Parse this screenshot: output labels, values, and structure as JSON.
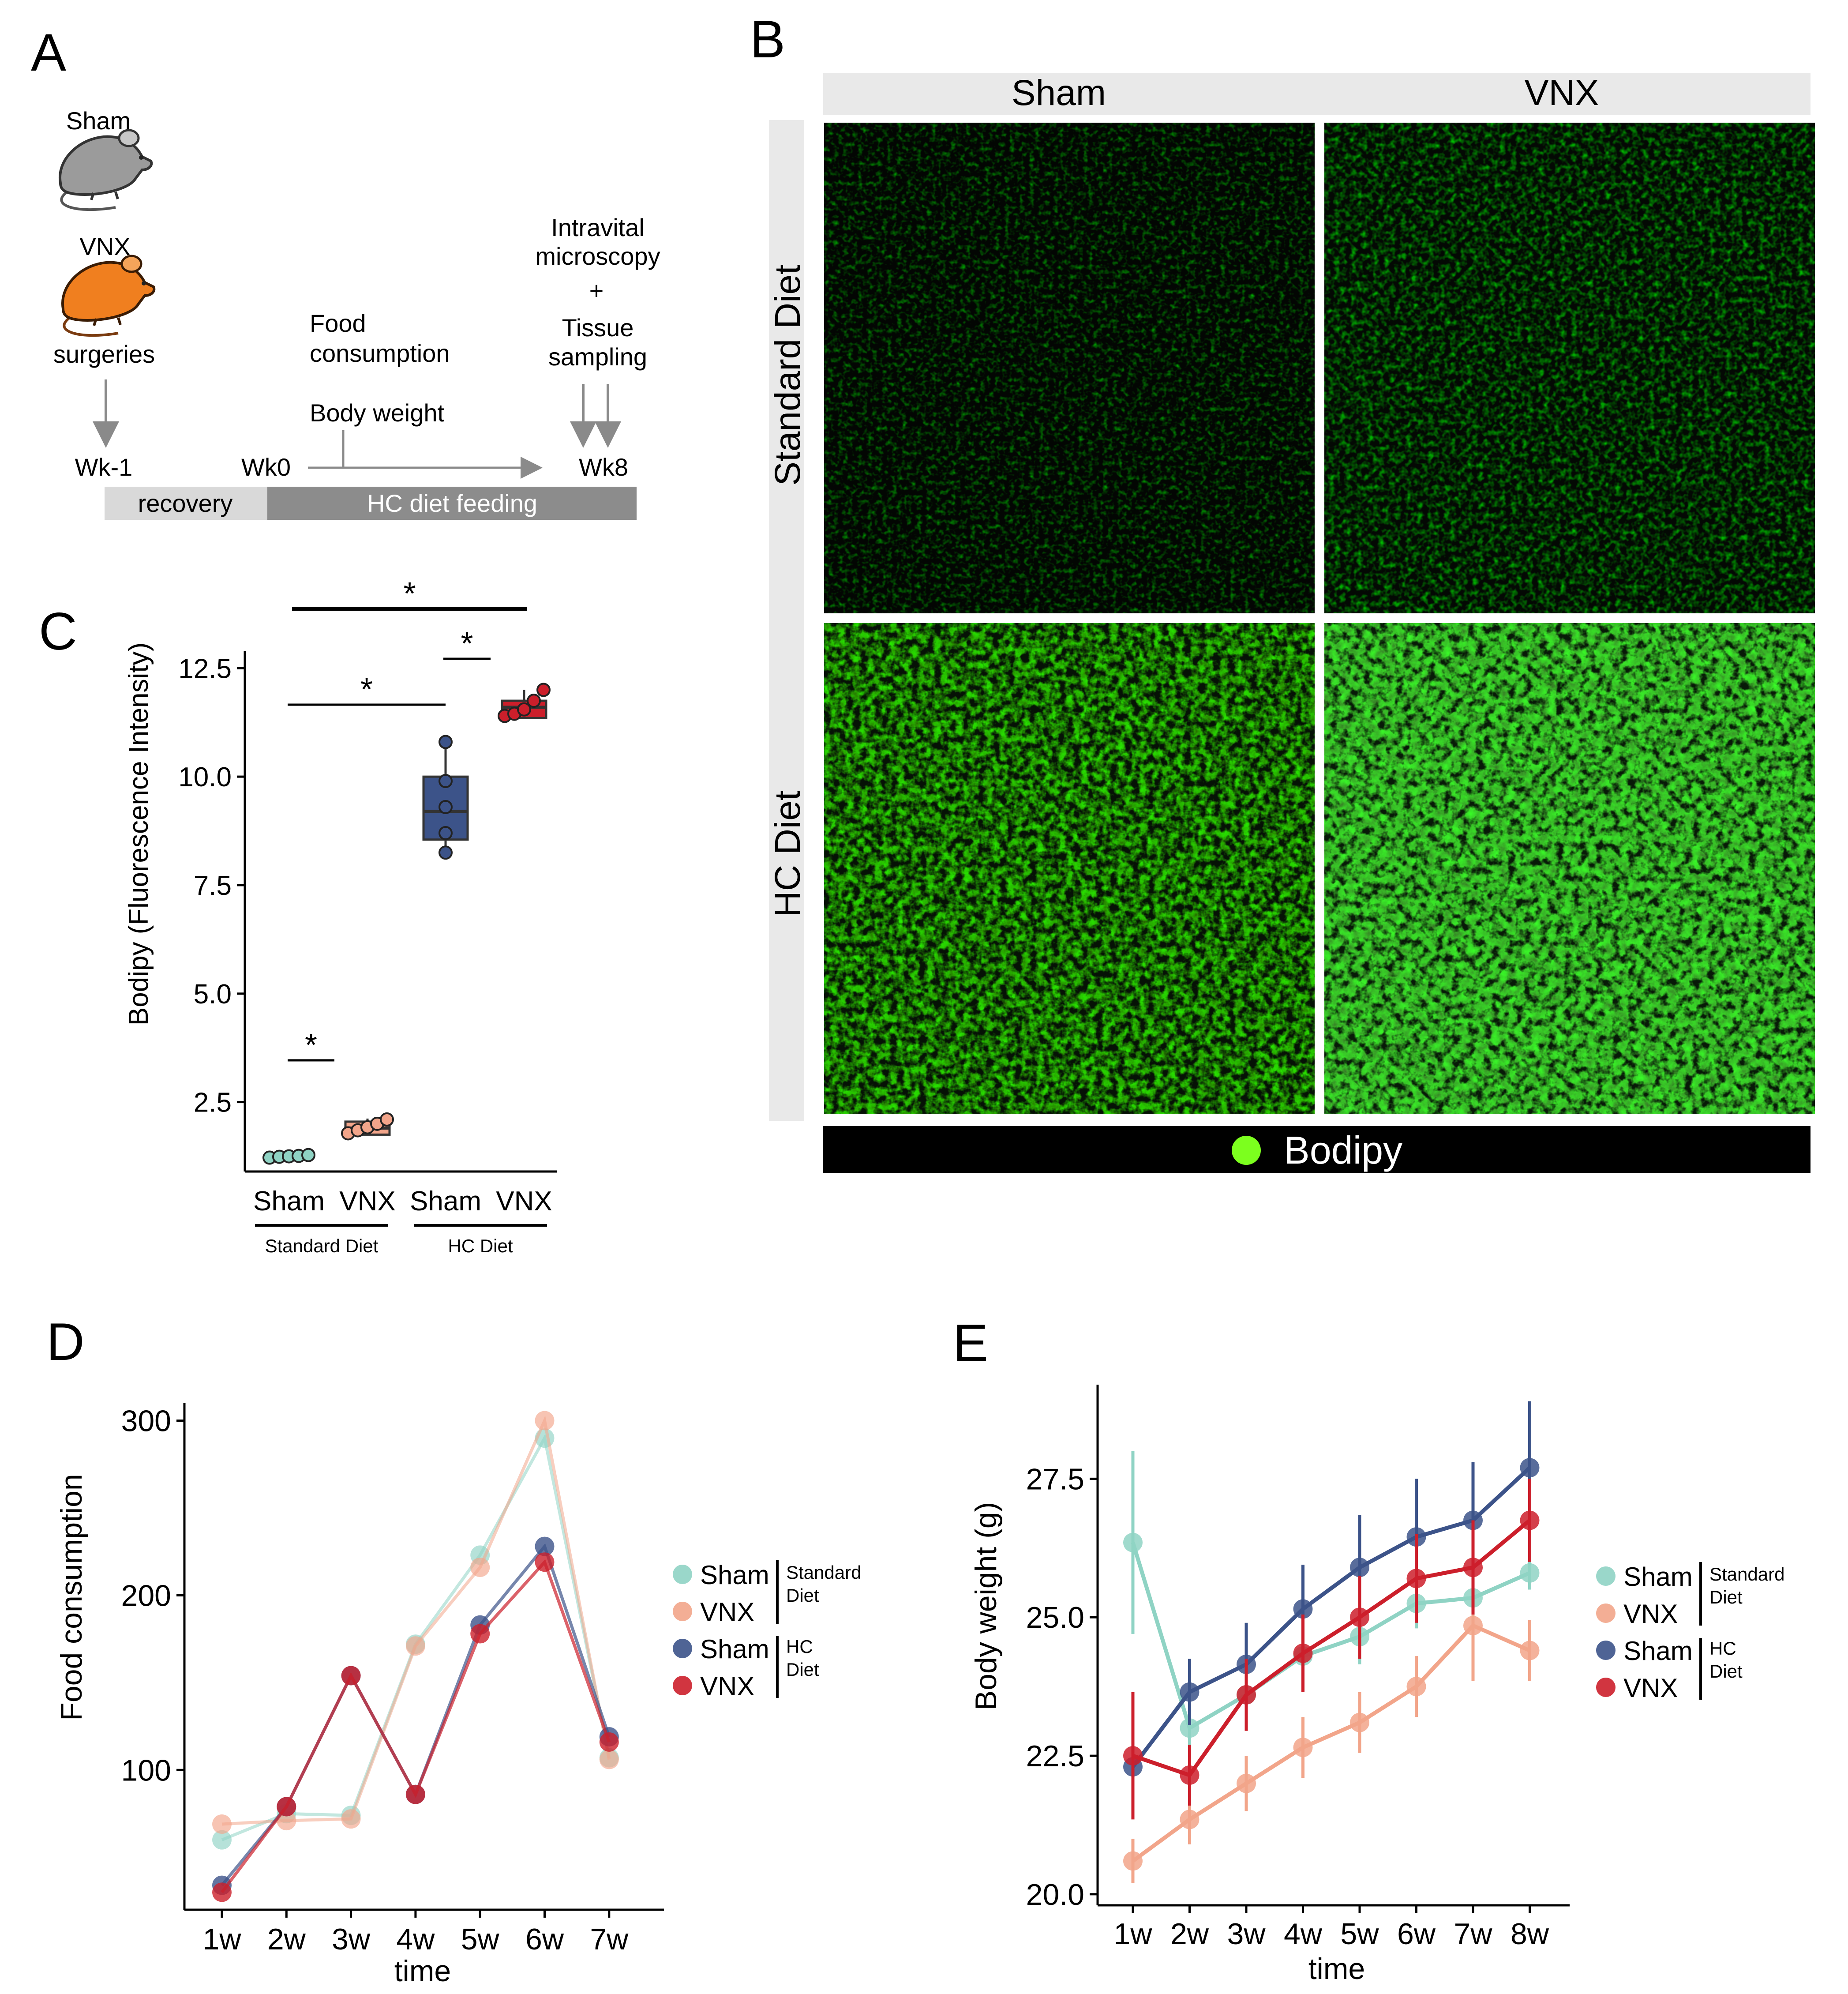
{
  "panel_labels": {
    "a": "A",
    "b": "B",
    "c": "C",
    "d": "D",
    "e": "E"
  },
  "colors": {
    "sham_std": "#8fd3c4",
    "vnx_std": "#f2a58a",
    "sham_hc": "#3c5389",
    "vnx_hc": "#cc1f2b",
    "bodipy_green": "#2bbf1e",
    "bodipy_dot": "#7cff1e",
    "strip_bg": "#e9e9e9"
  },
  "panelA": {
    "sham_label": "Sham",
    "vnx_label": "VNX",
    "surgeries": "surgeries",
    "food_line1": "Food",
    "food_line2": "consumption",
    "body_weight": "Body weight",
    "intravital_line1": "Intravital",
    "intravital_line2": "microscopy",
    "plus": "+",
    "tissue_line1": "Tissue",
    "tissue_line2": "sampling",
    "wk_minus1": "Wk-1",
    "wk0": "Wk0",
    "wk8": "Wk8",
    "recovery": "recovery",
    "hc_feeding": "HC diet feeding",
    "mouse_sham_icon": "gray-mouse-icon",
    "mouse_vnx_icon": "orange-mouse-icon"
  },
  "panelB": {
    "col_sham": "Sham",
    "col_vnx": "VNX",
    "row_standard": "Standard Diet",
    "row_hc": "HC Diet",
    "legend": "Bodipy",
    "images": [
      {
        "row": "Standard Diet",
        "col": "Sham",
        "intensity": 0.12
      },
      {
        "row": "Standard Diet",
        "col": "VNX",
        "intensity": 0.22
      },
      {
        "row": "HC Diet",
        "col": "Sham",
        "intensity": 0.7
      },
      {
        "row": "HC Diet",
        "col": "VNX",
        "intensity": 0.92
      }
    ]
  },
  "panelC": {
    "ylabel": "Bodipy (Fluorescence Intensity)",
    "group_standard": "Standard Diet",
    "group_hc": "HC Diet",
    "star": "*"
  },
  "panelD": {
    "ylabel": "Food consumption",
    "xlabel": "time",
    "legend_standard_line1": "Standard",
    "legend_standard_line2": "Diet",
    "legend_hc_line1": "HC",
    "legend_hc_line2": "Diet"
  },
  "panelE": {
    "ylabel": "Body weight (g)",
    "xlabel": "time",
    "legend_standard_line1": "Standard",
    "legend_standard_line2": "Diet",
    "legend_hc_line1": "HC",
    "legend_hc_line2": "Diet"
  },
  "chart_data": [
    {
      "id": "C",
      "type": "box",
      "categories": [
        "Sham",
        "VNX",
        "Sham",
        "VNX"
      ],
      "groups": [
        "Standard Diet",
        "Standard Diet",
        "HC Diet",
        "HC Diet"
      ],
      "ylabel": "Bodipy (Fluorescence Intensity)",
      "ylim": [
        0.9,
        12.9
      ],
      "yticks": [
        2.5,
        5.0,
        7.5,
        10.0,
        12.5
      ],
      "boxes": [
        {
          "name": "Sham",
          "group": "Standard Diet",
          "q1": 1.22,
          "median": 1.25,
          "q3": 1.28,
          "low": 1.22,
          "high": 1.28,
          "points": [
            1.22,
            1.24,
            1.25,
            1.26,
            1.28
          ]
        },
        {
          "name": "VNX",
          "group": "Standard Diet",
          "q1": 1.75,
          "median": 1.9,
          "q3": 2.05,
          "low": 1.75,
          "high": 2.12,
          "points": [
            1.78,
            1.85,
            1.92,
            2.0,
            2.1
          ]
        },
        {
          "name": "Sham",
          "group": "HC Diet",
          "q1": 8.55,
          "median": 9.2,
          "q3": 10.0,
          "low": 8.2,
          "high": 10.8,
          "points": [
            8.25,
            8.7,
            9.3,
            9.9,
            10.8
          ]
        },
        {
          "name": "VNX",
          "group": "HC Diet",
          "q1": 11.35,
          "median": 11.6,
          "q3": 11.75,
          "low": 11.35,
          "high": 12.0,
          "points": [
            11.4,
            11.45,
            11.55,
            11.75,
            12.0
          ]
        }
      ],
      "significance": [
        {
          "from": 0,
          "to": 1,
          "label": "*"
        },
        {
          "from": 0,
          "to": 2,
          "label": "*"
        },
        {
          "from": 2,
          "to": 3,
          "label": "*"
        },
        {
          "from": 0,
          "to": 3,
          "label": "*"
        }
      ]
    },
    {
      "id": "D",
      "type": "line",
      "x": [
        "1w",
        "2w",
        "3w",
        "4w",
        "5w",
        "6w",
        "7w"
      ],
      "ylabel": "Food consumption",
      "xlabel": "time",
      "ylim": [
        20,
        310
      ],
      "yticks": [
        100,
        200,
        300
      ],
      "series": [
        {
          "name": "Sham",
          "group": "Standard Diet",
          "color": "#8fd3c4",
          "values": [
            60,
            75,
            74,
            172,
            223,
            290,
            107
          ]
        },
        {
          "name": "VNX",
          "group": "Standard Diet",
          "color": "#f2a58a",
          "values": [
            69,
            71,
            72,
            171,
            216,
            300,
            106
          ]
        },
        {
          "name": "Sham",
          "group": "HC Diet",
          "color": "#3c5389",
          "values": [
            34,
            79,
            154,
            86,
            183,
            228,
            119
          ]
        },
        {
          "name": "VNX",
          "group": "HC Diet",
          "color": "#cc1f2b",
          "values": [
            30,
            79,
            154,
            86,
            178,
            219,
            116
          ]
        }
      ]
    },
    {
      "id": "E",
      "type": "line",
      "x": [
        "1w",
        "2w",
        "3w",
        "4w",
        "5w",
        "6w",
        "7w",
        "8w"
      ],
      "ylabel": "Body weight (g)",
      "xlabel": "time",
      "ylim": [
        19.8,
        29.2
      ],
      "yticks": [
        20.0,
        22.5,
        25.0,
        27.5
      ],
      "series": [
        {
          "name": "Sham",
          "group": "Standard Diet",
          "color": "#8fd3c4",
          "values": [
            26.35,
            23.0,
            23.6,
            24.3,
            24.65,
            25.25,
            25.35,
            25.8
          ],
          "err": [
            1.65,
            0.35,
            0.4,
            0.45,
            0.5,
            0.45,
            0.35,
            0.3
          ]
        },
        {
          "name": "VNX",
          "group": "Standard Diet",
          "color": "#f2a58a",
          "values": [
            20.6,
            21.35,
            22.0,
            22.65,
            23.1,
            23.75,
            24.85,
            24.4
          ],
          "err": [
            0.4,
            0.45,
            0.5,
            0.55,
            0.55,
            0.55,
            1.0,
            0.55
          ]
        },
        {
          "name": "Sham",
          "group": "HC Diet",
          "color": "#3c5389",
          "values": [
            22.3,
            23.65,
            24.15,
            25.15,
            25.9,
            26.45,
            26.75,
            27.7
          ],
          "err": [
            0.5,
            0.6,
            0.75,
            0.8,
            0.95,
            1.05,
            1.05,
            1.2
          ]
        },
        {
          "name": "VNX",
          "group": "HC Diet",
          "color": "#cc1f2b",
          "values": [
            22.5,
            22.15,
            23.6,
            24.35,
            25.0,
            25.7,
            25.9,
            26.75
          ],
          "err": [
            1.15,
            0.55,
            0.65,
            0.7,
            0.75,
            0.8,
            0.85,
            0.75
          ]
        }
      ]
    }
  ]
}
